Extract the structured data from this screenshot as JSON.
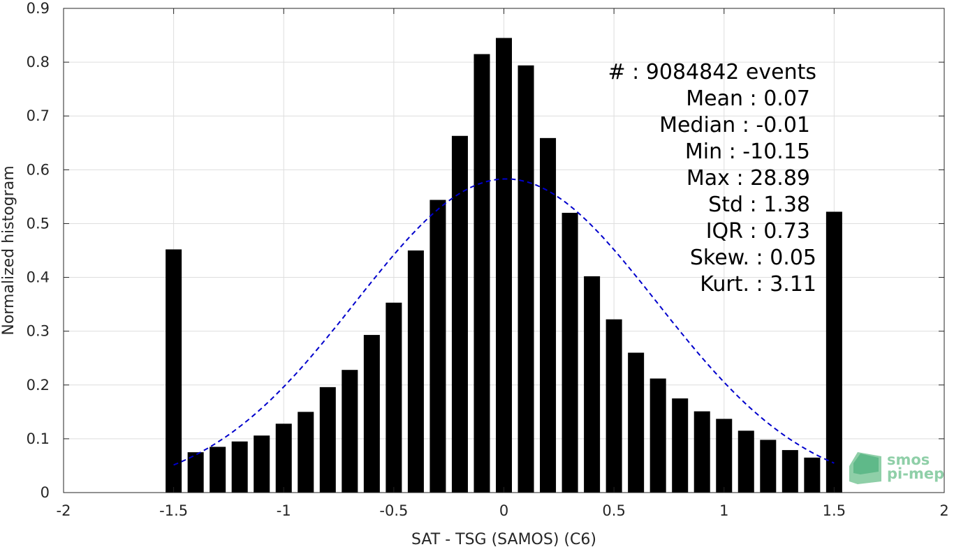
{
  "chart_data": {
    "type": "bar",
    "xlabel": "SAT - TSG (SAMOS) (C6)",
    "ylabel": "Normalized histogram",
    "xlim": [
      -2,
      2
    ],
    "ylim": [
      0,
      0.9
    ],
    "xticks": [
      "-2",
      "-1.5",
      "-1",
      "-0.5",
      "0",
      "0.5",
      "1",
      "1.5",
      "2"
    ],
    "yticks": [
      "0",
      "0.1",
      "0.2",
      "0.3",
      "0.4",
      "0.5",
      "0.6",
      "0.7",
      "0.8",
      "0.9"
    ],
    "grid": true,
    "bar_color": "#000000",
    "x": [
      -1.5,
      -1.4,
      -1.3,
      -1.2,
      -1.1,
      -1.0,
      -0.9,
      -0.8,
      -0.7,
      -0.6,
      -0.5,
      -0.4,
      -0.3,
      -0.2,
      -0.1,
      0.0,
      0.1,
      0.2,
      0.3,
      0.4,
      0.5,
      0.6,
      0.7,
      0.8,
      0.9,
      1.0,
      1.1,
      1.2,
      1.3,
      1.4,
      1.5
    ],
    "values": [
      0.452,
      0.075,
      0.085,
      0.095,
      0.106,
      0.128,
      0.15,
      0.196,
      0.228,
      0.293,
      0.353,
      0.45,
      0.544,
      0.663,
      0.815,
      0.845,
      0.794,
      0.659,
      0.52,
      0.402,
      0.322,
      0.26,
      0.212,
      0.175,
      0.151,
      0.137,
      0.115,
      0.098,
      0.079,
      0.065,
      0.522
    ],
    "fit_curve": {
      "style": "dashed",
      "color": "#0000cc",
      "mean": 0.01,
      "std": 0.685,
      "peak": 0.583,
      "xrange": [
        -1.5,
        1.5
      ]
    },
    "annotations": [
      "#  : 9084842 events",
      "Mean : 0.07",
      "Median : -0.01",
      "Min : -10.15",
      "Max : 28.89",
      "Std : 1.38",
      "IQR : 0.73",
      "Skew. : 0.05",
      "Kurt. : 3.11"
    ]
  },
  "logo": {
    "line1": "smos",
    "line2": "pi-mep"
  }
}
